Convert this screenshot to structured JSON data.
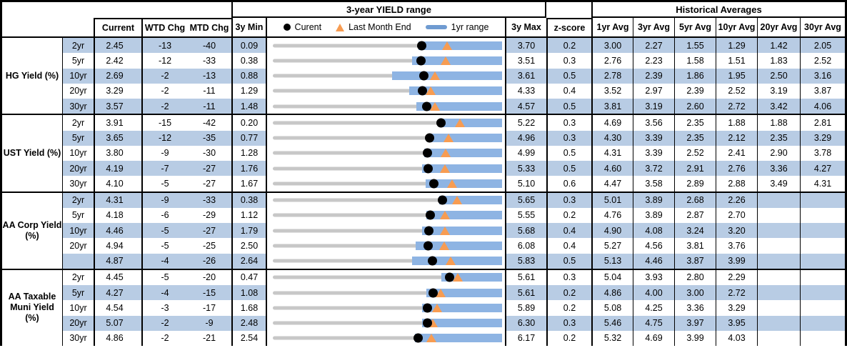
{
  "colors": {
    "row_shade": "#b8cce4",
    "range_bar_blue": "#8eb4e3",
    "legend_bar_blue": "#6f9bd1",
    "marker_orange": "#f79c52",
    "track_gray": "#c7c7c7",
    "dot_black": "#000000",
    "border_black": "#000000"
  },
  "chart_data": {
    "type": "table",
    "titles": {
      "range_title": "3-year YIELD range",
      "hist_title": "Historical Averages"
    },
    "columns": {
      "current": "Current",
      "wtd": "WTD Chg",
      "mtd": "MTD Chg",
      "min": "3y Min",
      "max": "3y Max",
      "zscore": "z-score",
      "avgs": [
        "1yr Avg",
        "3yr Avg",
        "5yr Avg",
        "10yr Avg",
        "20yr Avg",
        "30yr Avg"
      ]
    },
    "legend": {
      "current_label": "Curent",
      "last_month_label": "Last Month End",
      "range_label": "1yr range"
    },
    "chart_notes": "Each in-row chart spans 3y Min to 3y Max. Gray track = 3y range, blue bar = 1yr range (upper end equals 3y Max in every row), black dot = Current, orange triangle = Last Month End (Current minus MTD change in bps). bar_low and last_month are numeric values on the same scale.",
    "groups": [
      {
        "label": "HG Yield (%)",
        "rows": [
          {
            "tenor": "2yr",
            "current": "2.45",
            "wtd": "-13",
            "mtd": "-40",
            "min": "0.09",
            "max": "3.70",
            "zscore": "0.2",
            "avgs": [
              "3.00",
              "2.27",
              "1.55",
              "1.29",
              "1.42",
              "2.05"
            ],
            "bar_low": 2.4,
            "last_month": 2.85
          },
          {
            "tenor": "5yr",
            "current": "2.42",
            "wtd": "-12",
            "mtd": "-33",
            "min": "0.38",
            "max": "3.51",
            "zscore": "0.3",
            "avgs": [
              "2.76",
              "2.23",
              "1.58",
              "1.51",
              "1.83",
              "2.52"
            ],
            "bar_low": 2.29,
            "last_month": 2.75
          },
          {
            "tenor": "10yr",
            "current": "2.69",
            "wtd": "-2",
            "mtd": "-13",
            "min": "0.88",
            "max": "3.61",
            "zscore": "0.5",
            "avgs": [
              "2.78",
              "2.39",
              "1.86",
              "1.95",
              "2.50",
              "3.16"
            ],
            "bar_low": 2.31,
            "last_month": 2.82
          },
          {
            "tenor": "20yr",
            "current": "3.29",
            "wtd": "-2",
            "mtd": "-11",
            "min": "1.29",
            "max": "4.33",
            "zscore": "0.4",
            "avgs": [
              "3.52",
              "2.97",
              "2.39",
              "2.52",
              "3.19",
              "3.87"
            ],
            "bar_low": 3.11,
            "last_month": 3.4
          },
          {
            "tenor": "30yr",
            "current": "3.57",
            "wtd": "-2",
            "mtd": "-11",
            "min": "1.48",
            "max": "4.57",
            "zscore": "0.5",
            "avgs": [
              "3.81",
              "3.19",
              "2.60",
              "2.72",
              "3.42",
              "4.06"
            ],
            "bar_low": 3.43,
            "last_month": 3.68
          }
        ]
      },
      {
        "label": "UST Yield (%)",
        "rows": [
          {
            "tenor": "2yr",
            "current": "3.91",
            "wtd": "-15",
            "mtd": "-42",
            "min": "0.20",
            "max": "5.22",
            "zscore": "0.3",
            "avgs": [
              "4.69",
              "3.56",
              "2.35",
              "1.88",
              "1.88",
              "2.81"
            ],
            "bar_low": 3.87,
            "last_month": 4.33
          },
          {
            "tenor": "5yr",
            "current": "3.65",
            "wtd": "-12",
            "mtd": "-35",
            "min": "0.77",
            "max": "4.96",
            "zscore": "0.3",
            "avgs": [
              "4.30",
              "3.39",
              "2.35",
              "2.12",
              "2.35",
              "3.29"
            ],
            "bar_low": 3.62,
            "last_month": 4.0
          },
          {
            "tenor": "10yr",
            "current": "3.80",
            "wtd": "-9",
            "mtd": "-30",
            "min": "1.28",
            "max": "4.99",
            "zscore": "0.5",
            "avgs": [
              "4.31",
              "3.39",
              "2.52",
              "2.41",
              "2.90",
              "3.78"
            ],
            "bar_low": 3.75,
            "last_month": 4.1
          },
          {
            "tenor": "20yr",
            "current": "4.19",
            "wtd": "-7",
            "mtd": "-27",
            "min": "1.76",
            "max": "5.33",
            "zscore": "0.5",
            "avgs": [
              "4.60",
              "3.72",
              "2.91",
              "2.76",
              "3.36",
              "4.27"
            ],
            "bar_low": 4.1,
            "last_month": 4.46
          },
          {
            "tenor": "30yr",
            "current": "4.10",
            "wtd": "-5",
            "mtd": "-27",
            "min": "1.67",
            "max": "5.10",
            "zscore": "0.6",
            "avgs": [
              "4.47",
              "3.58",
              "2.89",
              "2.88",
              "3.49",
              "4.31"
            ],
            "bar_low": 3.97,
            "last_month": 4.37
          }
        ]
      },
      {
        "label": "AA Corp Yield\n(%)",
        "rows": [
          {
            "tenor": "2yr",
            "current": "4.31",
            "wtd": "-9",
            "mtd": "-33",
            "min": "0.38",
            "max": "5.65",
            "zscore": "0.3",
            "avgs": [
              "5.01",
              "3.89",
              "2.68",
              "2.26",
              "",
              ""
            ],
            "bar_low": 4.23,
            "last_month": 4.64
          },
          {
            "tenor": "5yr",
            "current": "4.18",
            "wtd": "-6",
            "mtd": "-29",
            "min": "1.12",
            "max": "5.55",
            "zscore": "0.2",
            "avgs": [
              "4.76",
              "3.89",
              "2.87",
              "2.70",
              "",
              ""
            ],
            "bar_low": 4.11,
            "last_month": 4.47
          },
          {
            "tenor": "10yr",
            "current": "4.46",
            "wtd": "-5",
            "mtd": "-27",
            "min": "1.79",
            "max": "5.68",
            "zscore": "0.4",
            "avgs": [
              "4.90",
              "4.08",
              "3.24",
              "3.20",
              "",
              ""
            ],
            "bar_low": 4.34,
            "last_month": 4.73
          },
          {
            "tenor": "20yr",
            "current": "4.94",
            "wtd": "-5",
            "mtd": "-25",
            "min": "2.50",
            "max": "6.08",
            "zscore": "0.4",
            "avgs": [
              "5.27",
              "4.56",
              "3.81",
              "3.76",
              "",
              ""
            ],
            "bar_low": 4.74,
            "last_month": 5.19
          },
          {
            "tenor": "",
            "current": "4.87",
            "wtd": "-4",
            "mtd": "-26",
            "min": "2.64",
            "max": "5.83",
            "zscore": "0.5",
            "avgs": [
              "5.13",
              "4.46",
              "3.87",
              "3.99",
              "",
              ""
            ],
            "bar_low": 4.59,
            "last_month": 5.13
          }
        ]
      },
      {
        "label": "AA Taxable\nMuni Yield\n(%)",
        "rows": [
          {
            "tenor": "2yr",
            "current": "4.45",
            "wtd": "-5",
            "mtd": "-20",
            "min": "0.47",
            "max": "5.61",
            "zscore": "0.3",
            "avgs": [
              "5.04",
              "3.93",
              "2.80",
              "2.29",
              "",
              ""
            ],
            "bar_low": 4.27,
            "last_month": 4.65
          },
          {
            "tenor": "5yr",
            "current": "4.27",
            "wtd": "-4",
            "mtd": "-15",
            "min": "1.08",
            "max": "5.61",
            "zscore": "0.2",
            "avgs": [
              "4.86",
              "4.00",
              "3.00",
              "2.72",
              "",
              ""
            ],
            "bar_low": 4.14,
            "last_month": 4.42
          },
          {
            "tenor": "10yr",
            "current": "4.54",
            "wtd": "-3",
            "mtd": "-17",
            "min": "1.68",
            "max": "5.89",
            "zscore": "0.2",
            "avgs": [
              "5.08",
              "4.25",
              "3.36",
              "3.29",
              "",
              ""
            ],
            "bar_low": 4.44,
            "last_month": 4.71
          },
          {
            "tenor": "20yr",
            "current": "5.07",
            "wtd": "-2",
            "mtd": "-9",
            "min": "2.48",
            "max": "6.30",
            "zscore": "0.3",
            "avgs": [
              "5.46",
              "4.75",
              "3.97",
              "3.95",
              "",
              ""
            ],
            "bar_low": 4.98,
            "last_month": 5.16
          },
          {
            "tenor": "30yr",
            "current": "4.86",
            "wtd": "-2",
            "mtd": "-21",
            "min": "2.54",
            "max": "6.17",
            "zscore": "0.2",
            "avgs": [
              "5.32",
              "4.69",
              "3.99",
              "4.03",
              "",
              ""
            ],
            "bar_low": 4.81,
            "last_month": 5.07
          }
        ]
      }
    ]
  }
}
